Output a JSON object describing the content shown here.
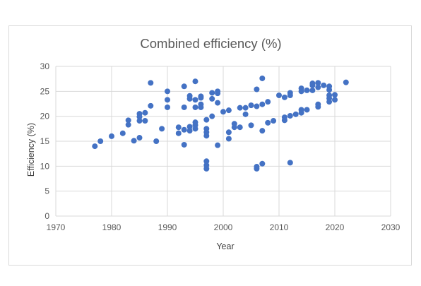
{
  "chart_data": {
    "type": "scatter",
    "title": "Combined efficiency (%)",
    "xlabel": "Year",
    "ylabel": "Efficiency (%)",
    "xlim": [
      1970,
      2030
    ],
    "ylim": [
      0,
      30
    ],
    "x_ticks": [
      "1970",
      "1980",
      "1990",
      "2000",
      "2010",
      "2020",
      "2030"
    ],
    "y_ticks": [
      "0",
      "5",
      "10",
      "15",
      "20",
      "25",
      "30"
    ],
    "grid": "horizontal and vertical",
    "legend": "none",
    "marker_color": "#4472c4",
    "series": [
      {
        "points": [
          [
            1977,
            14
          ],
          [
            1978,
            15
          ],
          [
            1980,
            16
          ],
          [
            1982,
            16.6
          ],
          [
            1983,
            18.3
          ],
          [
            1983,
            19.2
          ],
          [
            1984,
            15.1
          ],
          [
            1985,
            15.7
          ],
          [
            1985,
            19.1
          ],
          [
            1985,
            19.9
          ],
          [
            1985,
            20.5
          ],
          [
            1986,
            19.1
          ],
          [
            1986,
            20.7
          ],
          [
            1987,
            22.1
          ],
          [
            1987,
            26.7
          ],
          [
            1988,
            15
          ],
          [
            1989,
            17.5
          ],
          [
            1990,
            21.8
          ],
          [
            1990,
            23.3
          ],
          [
            1990,
            25
          ],
          [
            1992,
            16.6
          ],
          [
            1992,
            17.8
          ],
          [
            1993,
            14.3
          ],
          [
            1993,
            17.3
          ],
          [
            1993,
            21.8
          ],
          [
            1993,
            26
          ],
          [
            1994,
            17.1
          ],
          [
            1994,
            17.9
          ],
          [
            1994,
            23.5
          ],
          [
            1994,
            24.1
          ],
          [
            1995,
            17.5
          ],
          [
            1995,
            18.2
          ],
          [
            1995,
            18.8
          ],
          [
            1995,
            21.8
          ],
          [
            1995,
            23.3
          ],
          [
            1995,
            27
          ],
          [
            1996,
            21.8
          ],
          [
            1996,
            22.4
          ],
          [
            1996,
            23.7
          ],
          [
            1996,
            24
          ],
          [
            1997,
            9.5
          ],
          [
            1997,
            10.2
          ],
          [
            1997,
            11
          ],
          [
            1997,
            16.1
          ],
          [
            1997,
            16.8
          ],
          [
            1997,
            17.5
          ],
          [
            1997,
            19.3
          ],
          [
            1998,
            20
          ],
          [
            1998,
            23.5
          ],
          [
            1998,
            24.7
          ],
          [
            1999,
            14.2
          ],
          [
            1999,
            22.7
          ],
          [
            1999,
            24.6
          ],
          [
            1999,
            25
          ],
          [
            2000,
            20.9
          ],
          [
            2001,
            15.5
          ],
          [
            2001,
            16.8
          ],
          [
            2001,
            21.2
          ],
          [
            2002,
            17.8
          ],
          [
            2002,
            18.5
          ],
          [
            2003,
            17.8
          ],
          [
            2003,
            21.7
          ],
          [
            2004,
            20.4
          ],
          [
            2004,
            21.7
          ],
          [
            2005,
            18.2
          ],
          [
            2005,
            22.2
          ],
          [
            2006,
            9.5
          ],
          [
            2006,
            9.9
          ],
          [
            2006,
            22
          ],
          [
            2006,
            25.4
          ],
          [
            2007,
            10.5
          ],
          [
            2007,
            17.1
          ],
          [
            2007,
            22.4
          ],
          [
            2007,
            27.6
          ],
          [
            2008,
            18.7
          ],
          [
            2008,
            22.9
          ],
          [
            2009,
            19.1
          ],
          [
            2010,
            24.2
          ],
          [
            2011,
            19.2
          ],
          [
            2011,
            19.8
          ],
          [
            2011,
            23.8
          ],
          [
            2012,
            10.7
          ],
          [
            2012,
            20.1
          ],
          [
            2012,
            24.2
          ],
          [
            2012,
            24.7
          ],
          [
            2013,
            20.4
          ],
          [
            2014,
            20.7
          ],
          [
            2014,
            21.3
          ],
          [
            2014,
            25
          ],
          [
            2014,
            25.6
          ],
          [
            2015,
            21.3
          ],
          [
            2015,
            25.2
          ],
          [
            2016,
            25.2
          ],
          [
            2016,
            26.2
          ],
          [
            2016,
            26.6
          ],
          [
            2017,
            21.9
          ],
          [
            2017,
            22.4
          ],
          [
            2017,
            25.8
          ],
          [
            2017,
            26.7
          ],
          [
            2018,
            26.2
          ],
          [
            2019,
            22.9
          ],
          [
            2019,
            23.6
          ],
          [
            2019,
            24.2
          ],
          [
            2019,
            25.3
          ],
          [
            2019,
            26
          ],
          [
            2020,
            23.3
          ],
          [
            2020,
            24.3
          ],
          [
            2022,
            26.8
          ]
        ]
      }
    ]
  }
}
